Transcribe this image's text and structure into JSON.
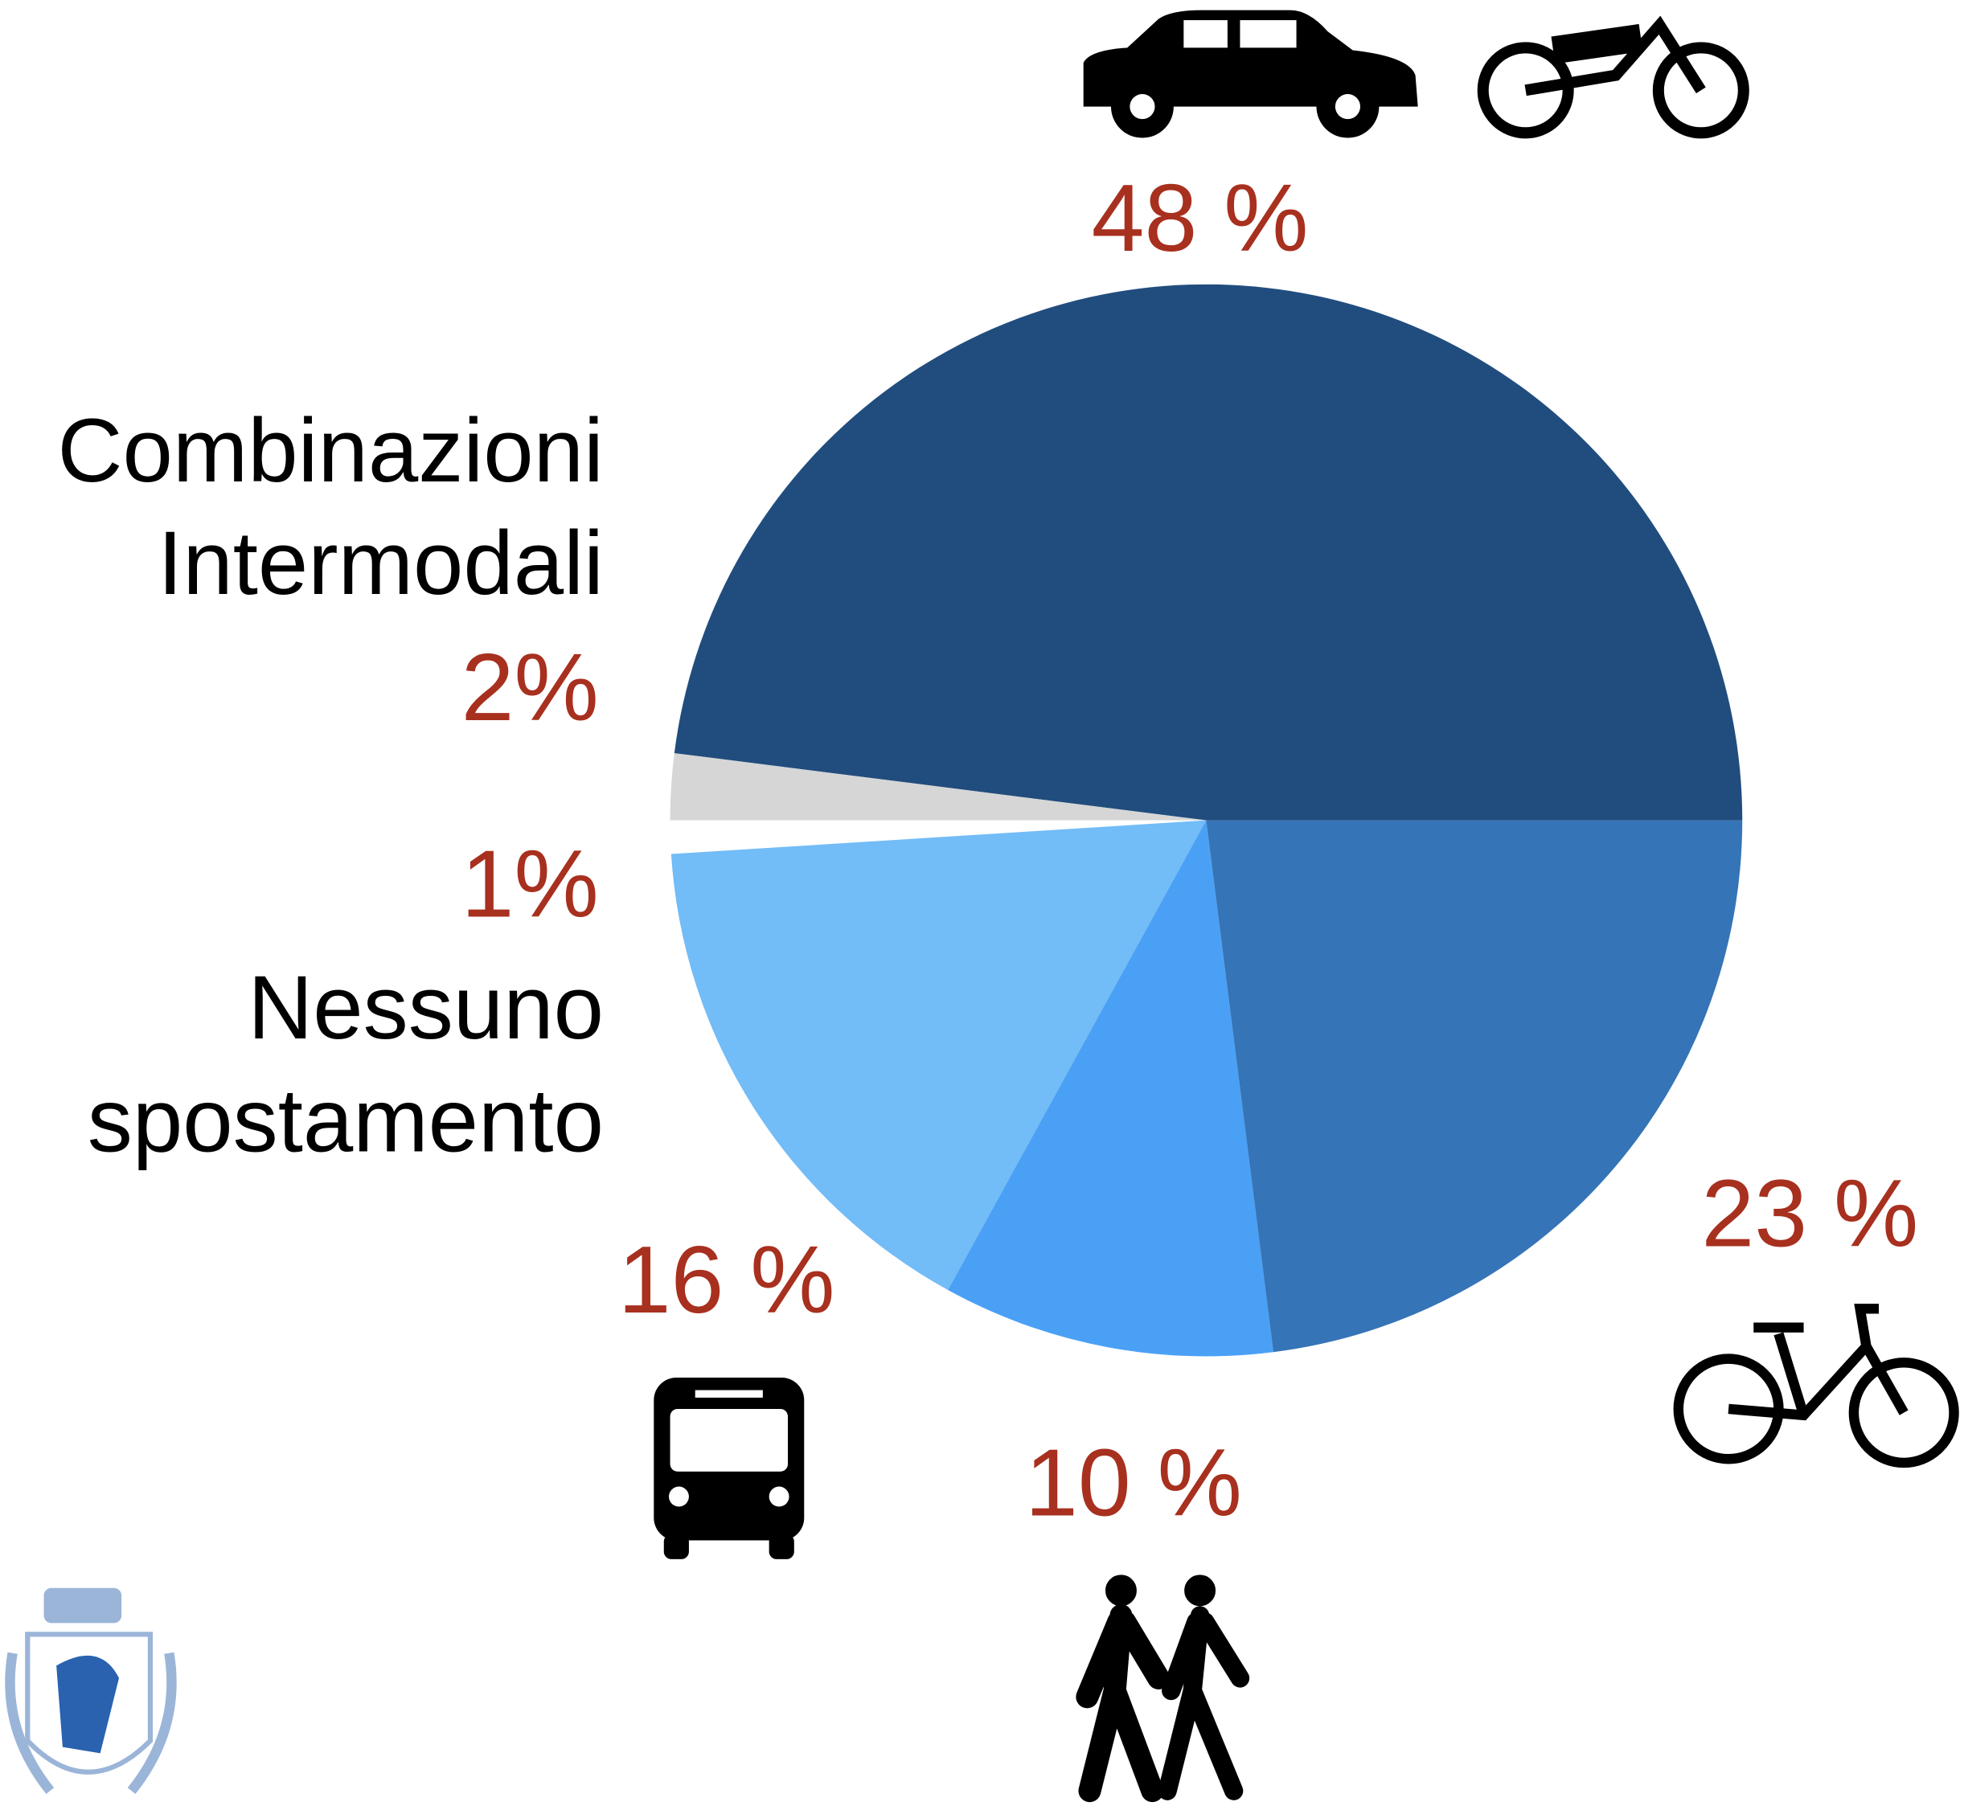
{
  "chart_data": {
    "type": "pie",
    "categories": [
      null,
      "Combinazioni Intermodali",
      "Nessuno spostamento",
      null,
      null,
      null
    ],
    "values": [
      48,
      2,
      1,
      16,
      10,
      23
    ],
    "value_labels": [
      "48 %",
      "2%",
      "1%",
      "16 %",
      "10 %",
      "23 %"
    ],
    "colors": [
      "#214d7e",
      "#d6d6d6",
      "#ffffff",
      "#72bcf7",
      "#4aa0f5",
      "#3574b6"
    ]
  }
}
